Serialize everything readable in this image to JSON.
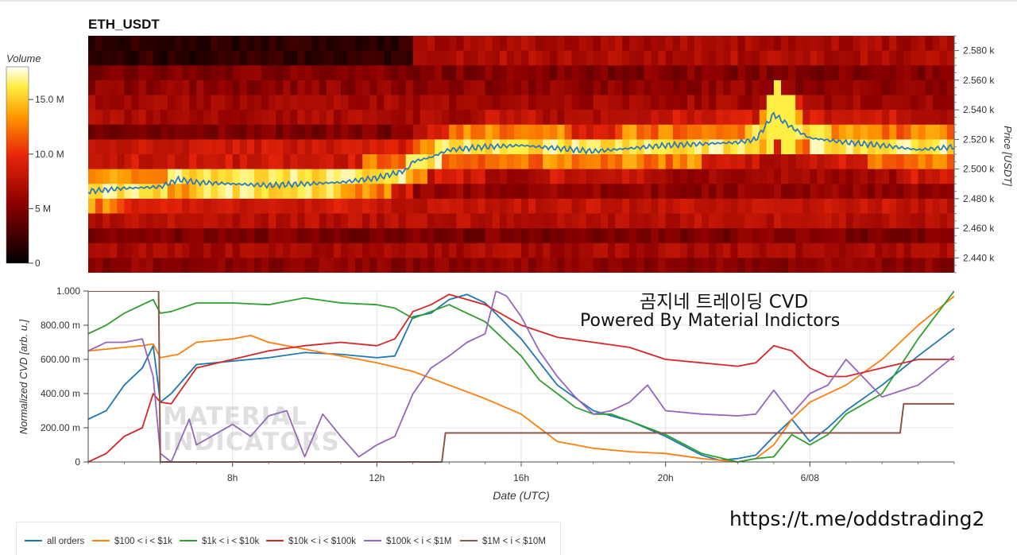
{
  "page": {
    "top_title": "ETH_USDT",
    "watermark_line1": "곰지네 트레이딩 CVD",
    "watermark_line2": "Powered By Material Indictors",
    "link": "https://t.me/oddstrading2",
    "logo_line1": "MATERIAL",
    "logo_line2": "INDICATORS"
  },
  "colors": {
    "all_orders": "#1f77b4",
    "r100_1k": "#ff7f0e",
    "r1k_10k": "#2ca02c",
    "r10k_100k": "#d62728",
    "r100k_1m": "#9467bd",
    "r1m_10m": "#8c564b",
    "price_line": "#2b7bba"
  },
  "chart_data": [
    {
      "type": "heatmap",
      "title": "ETH_USDT",
      "colorbar_label": "Volume",
      "colorbar_ticks": [
        "0",
        "5 M",
        "10.0 M",
        "15.0 M"
      ],
      "colorbar_range": [
        0,
        18000000
      ],
      "ylabel": "Price [USDT]",
      "ylim": [
        2430,
        2590
      ],
      "y_ticks": [
        "2.440 k",
        "2.460 k",
        "2.480 k",
        "2.500 k",
        "2.520 k",
        "2.540 k",
        "2.560 k",
        "2.580 k"
      ],
      "y_tick_values": [
        2440,
        2460,
        2480,
        2500,
        2520,
        2540,
        2560,
        2580
      ],
      "time_range_hours": [
        4,
        28
      ],
      "price_line": {
        "hours": [
          4,
          5,
          6,
          6.5,
          7,
          8,
          9,
          10,
          11,
          12,
          12.8,
          13,
          13.5,
          14,
          15,
          16,
          17,
          18,
          19,
          20,
          21,
          22,
          22.5,
          23,
          23.5,
          24,
          25,
          26,
          27,
          28
        ],
        "price": [
          2485,
          2487,
          2488,
          2493,
          2491,
          2490,
          2489,
          2490,
          2491,
          2494,
          2499,
          2505,
          2508,
          2513,
          2515,
          2516,
          2514,
          2512,
          2514,
          2516,
          2517,
          2518,
          2520,
          2537,
          2528,
          2521,
          2518,
          2516,
          2513,
          2515
        ]
      }
    },
    {
      "type": "line",
      "xlabel": "Date (UTC)",
      "ylabel": "Normalized CVD [arb. u.]",
      "ylim": [
        0,
        1
      ],
      "xlim_hours": [
        4,
        28
      ],
      "x_ticks": [
        "8h",
        "12h",
        "16h",
        "20h",
        "6/08"
      ],
      "x_tick_hours": [
        8,
        12,
        16,
        20,
        24
      ],
      "y_ticks": [
        "0",
        "200.00 m",
        "400.00 m",
        "600.00 m",
        "800.00 m",
        "1.000"
      ],
      "legend_position": "bottom-left",
      "series": [
        {
          "name": "all orders",
          "x": [
            4,
            4.5,
            5,
            5.5,
            5.8,
            6,
            6.3,
            7,
            7.5,
            8,
            9,
            10,
            11,
            12,
            12.5,
            13,
            13.5,
            14,
            14.5,
            15,
            16,
            17,
            18,
            18.5,
            19,
            20,
            21,
            21.5,
            22,
            22.5,
            23,
            23.5,
            24,
            24.5,
            25,
            26,
            27,
            28
          ],
          "y": [
            0.25,
            0.3,
            0.45,
            0.55,
            0.68,
            0.35,
            0.4,
            0.57,
            0.58,
            0.59,
            0.61,
            0.64,
            0.63,
            0.61,
            0.62,
            0.85,
            0.87,
            0.95,
            0.98,
            0.93,
            0.72,
            0.45,
            0.3,
            0.27,
            0.24,
            0.15,
            0.04,
            0.01,
            0.02,
            0.04,
            0.15,
            0.25,
            0.12,
            0.2,
            0.3,
            0.45,
            0.62,
            0.78
          ]
        },
        {
          "name": "$100 < i < $1k",
          "x": [
            4,
            5,
            5.5,
            5.8,
            6,
            6.5,
            7,
            8,
            8.5,
            9,
            10,
            11,
            12,
            13,
            14,
            15,
            16,
            16.5,
            17,
            18,
            19,
            20,
            21,
            22,
            22.5,
            23,
            23.5,
            24,
            25,
            26,
            27,
            28
          ],
          "y": [
            0.65,
            0.67,
            0.68,
            0.69,
            0.61,
            0.63,
            0.7,
            0.72,
            0.74,
            0.7,
            0.66,
            0.62,
            0.58,
            0.53,
            0.45,
            0.37,
            0.28,
            0.2,
            0.12,
            0.08,
            0.06,
            0.05,
            0.02,
            0.0,
            0.02,
            0.1,
            0.25,
            0.35,
            0.45,
            0.6,
            0.8,
            0.97
          ]
        },
        {
          "name": "$1k < i < $10k",
          "x": [
            4,
            4.5,
            5,
            5.5,
            5.8,
            6,
            6.3,
            7,
            8,
            9,
            10,
            11,
            12,
            12.5,
            13,
            13.5,
            14,
            15,
            16,
            16.5,
            17,
            17.5,
            18,
            18.5,
            19,
            20,
            21,
            22,
            22.5,
            23,
            23.5,
            24,
            24.5,
            25,
            26,
            27,
            28
          ],
          "y": [
            0.75,
            0.8,
            0.87,
            0.92,
            0.95,
            0.87,
            0.88,
            0.93,
            0.93,
            0.92,
            0.96,
            0.93,
            0.92,
            0.9,
            0.84,
            0.88,
            0.92,
            0.82,
            0.62,
            0.48,
            0.4,
            0.32,
            0.28,
            0.28,
            0.24,
            0.16,
            0.05,
            0.0,
            0.02,
            0.03,
            0.16,
            0.1,
            0.16,
            0.28,
            0.4,
            0.72,
            1.0
          ]
        },
        {
          "name": "$10k < i < $100k",
          "x": [
            4,
            4.5,
            5,
            5.5,
            5.8,
            6,
            6.3,
            7,
            8,
            9,
            10,
            11,
            12,
            12.5,
            13,
            13.5,
            14,
            15,
            16,
            17,
            18,
            19,
            20,
            21,
            22,
            22.5,
            23,
            23.5,
            24,
            24.5,
            25,
            26,
            27,
            28
          ],
          "y": [
            0.0,
            0.05,
            0.15,
            0.2,
            0.4,
            0.35,
            0.34,
            0.55,
            0.6,
            0.65,
            0.68,
            0.7,
            0.68,
            0.72,
            0.88,
            0.92,
            0.98,
            0.92,
            0.8,
            0.73,
            0.7,
            0.67,
            0.6,
            0.58,
            0.56,
            0.58,
            0.68,
            0.65,
            0.55,
            0.5,
            0.5,
            0.55,
            0.6,
            0.6
          ]
        },
        {
          "name": "$100k < i < $1M",
          "x": [
            4,
            4.5,
            5,
            5.5,
            5.8,
            6,
            6.3,
            6.8,
            7,
            8,
            8.5,
            9,
            9.5,
            10,
            10.5,
            11,
            11.5,
            12,
            12.5,
            13,
            13.5,
            14,
            14.5,
            15,
            15.3,
            15.6,
            16,
            16.5,
            17,
            17.5,
            18,
            18.5,
            19,
            19.5,
            20,
            21,
            22,
            22.5,
            23,
            23.5,
            24,
            24.5,
            25,
            26,
            27,
            28
          ],
          "y": [
            0.65,
            0.7,
            0.7,
            0.72,
            0.5,
            0.05,
            0.0,
            0.25,
            0.1,
            0.22,
            0.15,
            0.27,
            0.3,
            0.03,
            0.28,
            0.15,
            0.03,
            0.1,
            0.15,
            0.4,
            0.55,
            0.62,
            0.7,
            0.75,
            1.0,
            0.97,
            0.85,
            0.65,
            0.5,
            0.38,
            0.28,
            0.3,
            0.35,
            0.45,
            0.3,
            0.28,
            0.27,
            0.28,
            0.42,
            0.28,
            0.4,
            0.45,
            0.6,
            0.38,
            0.45,
            0.62
          ]
        },
        {
          "name": "$1M < i < $10M",
          "x": [
            4,
            5.95,
            6.0,
            13.8,
            13.9,
            26.5,
            26.6,
            28
          ],
          "y": [
            1.0,
            1.0,
            0.0,
            0.0,
            0.17,
            0.17,
            0.34,
            0.34
          ]
        }
      ]
    }
  ]
}
